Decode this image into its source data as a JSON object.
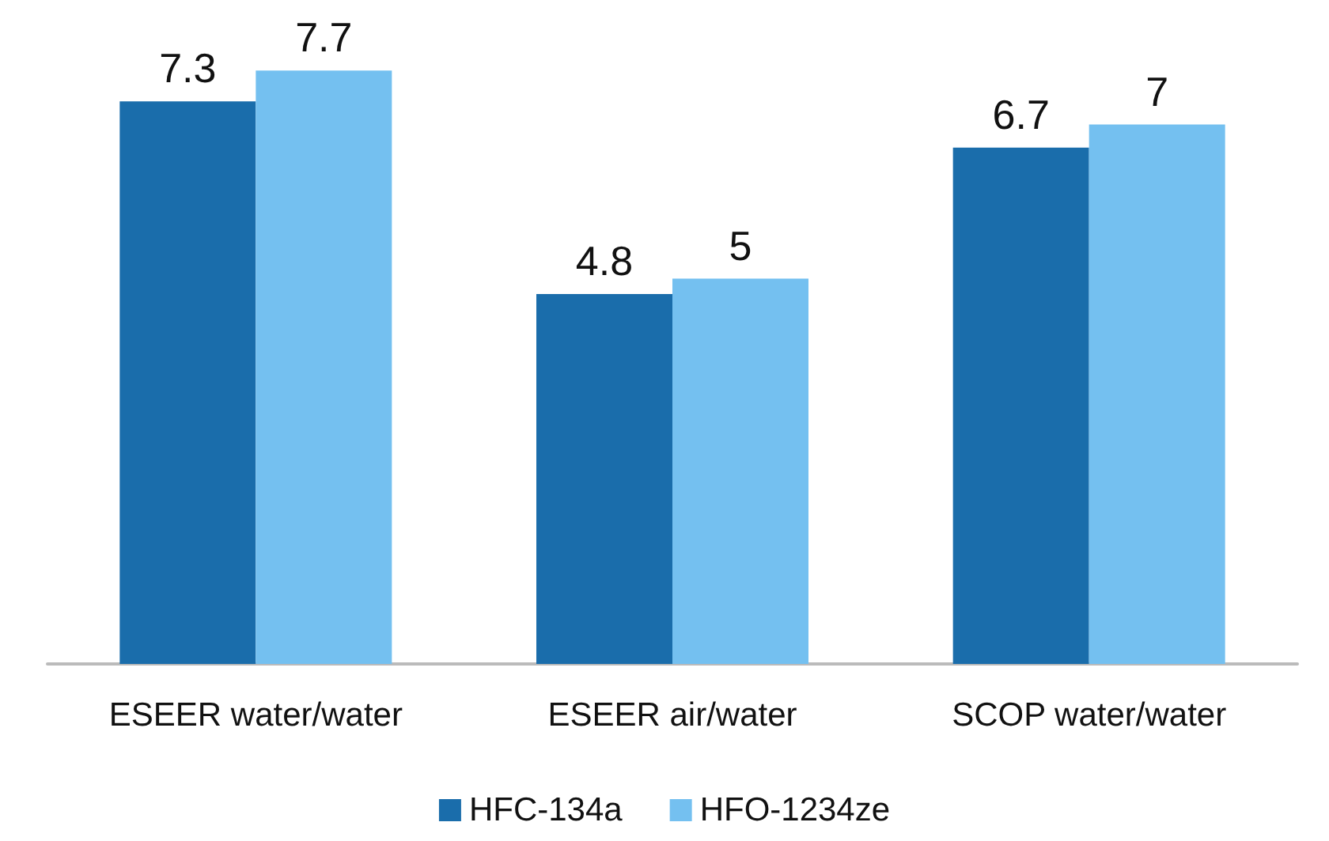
{
  "chart_data": {
    "type": "bar",
    "categories": [
      "ESEER water/water",
      "ESEER air/water",
      "SCOP water/water"
    ],
    "series": [
      {
        "name": "HFC-134a",
        "color": "#1a6dab",
        "values": [
          7.3,
          4.8,
          6.7
        ]
      },
      {
        "name": "HFO-1234ze",
        "color": "#74c0f0",
        "values": [
          7.7,
          5,
          7
        ]
      }
    ],
    "data_labels": true,
    "legend": "bottom",
    "grid": false
  }
}
